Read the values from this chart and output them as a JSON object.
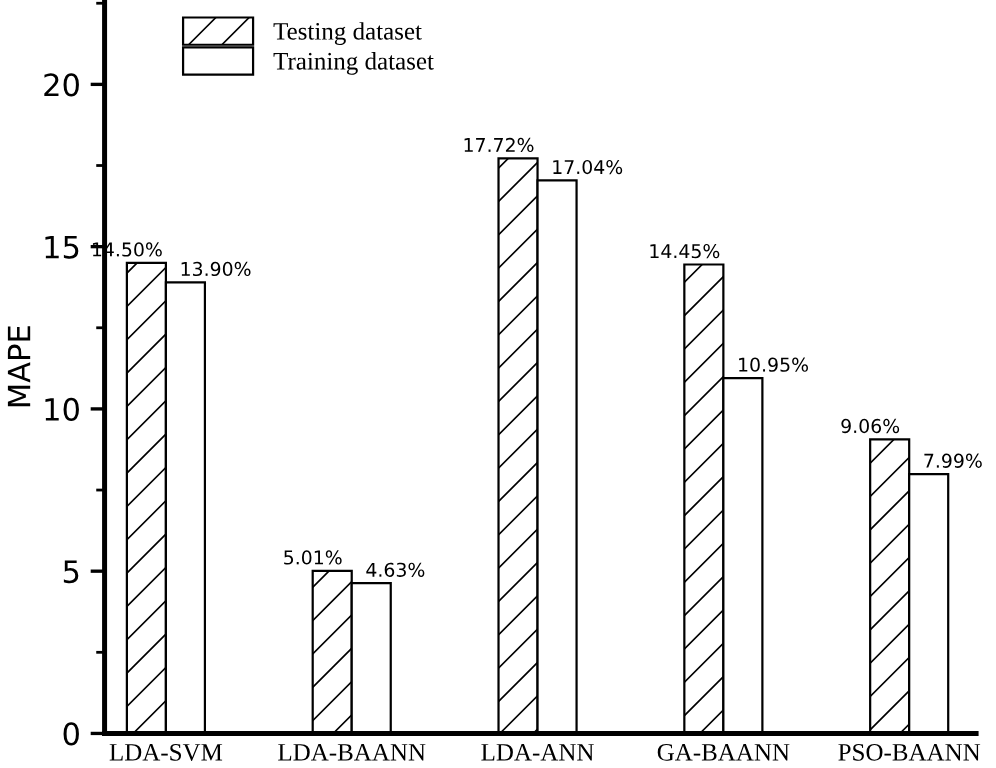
{
  "chart_data": {
    "type": "bar",
    "ylabel": "MAPE",
    "categories": [
      "LDA-SVM",
      "LDA-BAANN",
      "LDA-ANN",
      "GA-BAANN",
      "PSO-BAANN"
    ],
    "series": [
      {
        "name": "Testing dataset",
        "color": "#000000",
        "values": [
          14.5,
          5.01,
          17.72,
          14.45,
          9.06
        ],
        "value_labels": [
          "14.50%",
          "5.01%",
          "17.72%",
          "14.45%",
          "9.06%"
        ]
      },
      {
        "name": "Training dataset",
        "color": "#ffffff",
        "values": [
          13.9,
          4.63,
          17.04,
          10.95,
          7.99
        ],
        "value_labels": [
          "13.90%",
          "4.63%",
          "17.04%",
          "10.95%",
          "7.99%"
        ]
      }
    ],
    "ylim": [
      0,
      22.6
    ],
    "yticks": [
      0,
      5,
      10,
      15,
      20
    ],
    "grid": false,
    "legend": "top left"
  }
}
